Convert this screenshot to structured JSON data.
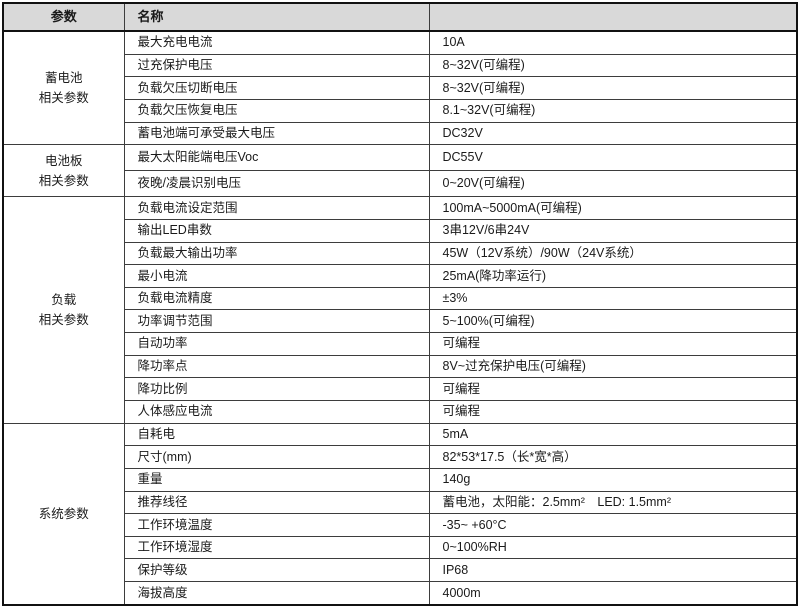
{
  "table": {
    "headers": {
      "param": "参数",
      "name": "名称",
      "value": ""
    },
    "groups": [
      {
        "param": "蓄电池\n相关参数",
        "rows": [
          {
            "name": "最大充电电流",
            "value": "10A"
          },
          {
            "name": "过充保护电压",
            "value": "8~32V(可编程)"
          },
          {
            "name": "负载欠压切断电压",
            "value": "8~32V(可编程)"
          },
          {
            "name": "负载欠压恢复电压",
            "value": "8.1~32V(可编程)"
          },
          {
            "name": "蓄电池端可承受最大电压",
            "value": "DC32V"
          }
        ]
      },
      {
        "param": "电池板\n相关参数",
        "rows": [
          {
            "name": "最大太阳能端电压Voc",
            "value": "DC55V"
          },
          {
            "name": "夜晚/凌晨识别电压",
            "value": "0~20V(可编程)"
          }
        ]
      },
      {
        "param": "负载\n相关参数",
        "rows": [
          {
            "name": "负载电流设定范围",
            "value": "100mA~5000mA(可编程)"
          },
          {
            "name": "输出LED串数",
            "value": "3串12V/6串24V"
          },
          {
            "name": "负载最大输出功率",
            "value": "45W（12V系统）/90W（24V系统）"
          },
          {
            "name": "最小电流",
            "value": "25mA(降功率运行)"
          },
          {
            "name": "负载电流精度",
            "value": "±3%"
          },
          {
            "name": "功率调节范围",
            "value": "5~100%(可编程)"
          },
          {
            "name": "自动功率",
            "value": "可编程"
          },
          {
            "name": "降功率点",
            "value": "8V~过充保护电压(可编程)"
          },
          {
            "name": "降功比例",
            "value": "可编程"
          },
          {
            "name": "人体感应电流",
            "value": "可编程"
          }
        ]
      },
      {
        "param": "系统参数",
        "rows": [
          {
            "name": "自耗电",
            "value": "5mA"
          },
          {
            "name": "尺寸(mm)",
            "value": "82*53*17.5（长*宽*高）"
          },
          {
            "name": "重量",
            "value": "140g"
          },
          {
            "name": "推荐线径",
            "value": "蓄电池，太阳能：2.5mm²　LED: 1.5mm²"
          },
          {
            "name": "工作环境温度",
            "value": "-35~ +60°C"
          },
          {
            "name": "工作环境湿度",
            "value": "0~100%RH"
          },
          {
            "name": "保护等级",
            "value": "IP68"
          },
          {
            "name": "海拔高度",
            "value": "4000m"
          }
        ]
      }
    ],
    "colors": {
      "header_bg": "#d9d9d9",
      "border": "#3d3d3d",
      "outer_border": "#111111",
      "text": "#1a1a1a"
    }
  }
}
